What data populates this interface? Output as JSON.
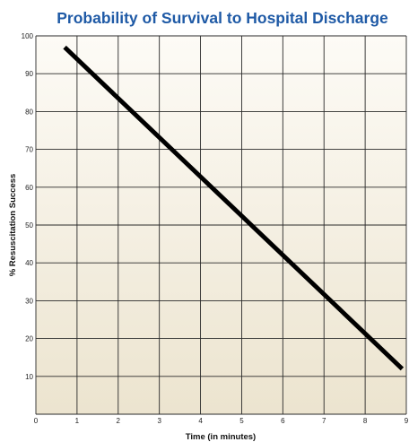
{
  "chart_data": {
    "type": "line",
    "title": "Probability of Survival to Hospital Discharge",
    "xlabel": "Time (in minutes)",
    "ylabel": "%  Resuscitation Success",
    "xlim": [
      0,
      9
    ],
    "ylim": [
      0,
      100
    ],
    "x_ticks": [
      "0",
      "1",
      "2",
      "3",
      "4",
      "5",
      "6",
      "7",
      "8",
      "9"
    ],
    "y_ticks": [
      "10",
      "20",
      "30",
      "40",
      "50",
      "60",
      "70",
      "80",
      "90",
      "100"
    ],
    "grid": true,
    "legend": "none",
    "series": [
      {
        "x": [
          0.7,
          8.9
        ],
        "y": [
          97,
          12
        ],
        "color": "#000000"
      }
    ],
    "colors": {
      "title": "#1f5aa6",
      "plot_top": "#fdfbf6",
      "plot_bottom": "#ece4cf",
      "grid": "#2a2a2a",
      "line": "#000000"
    }
  }
}
